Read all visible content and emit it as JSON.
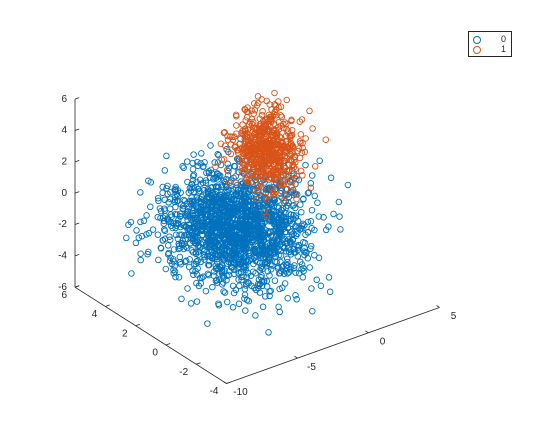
{
  "chart_data": {
    "type": "scatter",
    "projection": "3d",
    "title": "",
    "axes": {
      "x": {
        "range": [
          -10,
          5
        ],
        "ticks": [
          -10,
          -5,
          0,
          5
        ],
        "tick_labels": [
          "-10",
          "-5",
          "0",
          "5"
        ]
      },
      "y": {
        "range": [
          -4,
          6
        ],
        "ticks": [
          -4,
          -2,
          0,
          2,
          4,
          6
        ],
        "tick_labels": [
          "-4",
          "-2",
          "0",
          "2",
          "4",
          "6"
        ]
      },
      "z": {
        "range": [
          -6,
          6
        ],
        "ticks": [
          -6,
          -4,
          -2,
          0,
          2,
          4,
          6
        ],
        "tick_labels": [
          "-6",
          "-4",
          "-2",
          "0",
          "2",
          "4",
          "6"
        ]
      }
    },
    "grid": false,
    "legend_position": "top-right",
    "series": [
      {
        "name": "0",
        "color": "#0072BD",
        "marker": "open-circle",
        "cluster": {
          "center_x": -4.5,
          "center_y": 0.5,
          "center_z": -0.6,
          "spread_x": 1.9,
          "spread_y": 1.5,
          "spread_z": 1.5
        },
        "approx_points": 1800
      },
      {
        "name": "1",
        "color": "#D95319",
        "marker": "open-circle",
        "cluster": {
          "center_x": 0.3,
          "center_y": 3.0,
          "center_z": 1.2,
          "spread_x": 0.9,
          "spread_y": 0.7,
          "spread_z": 1.2
        },
        "approx_points": 600
      }
    ]
  }
}
